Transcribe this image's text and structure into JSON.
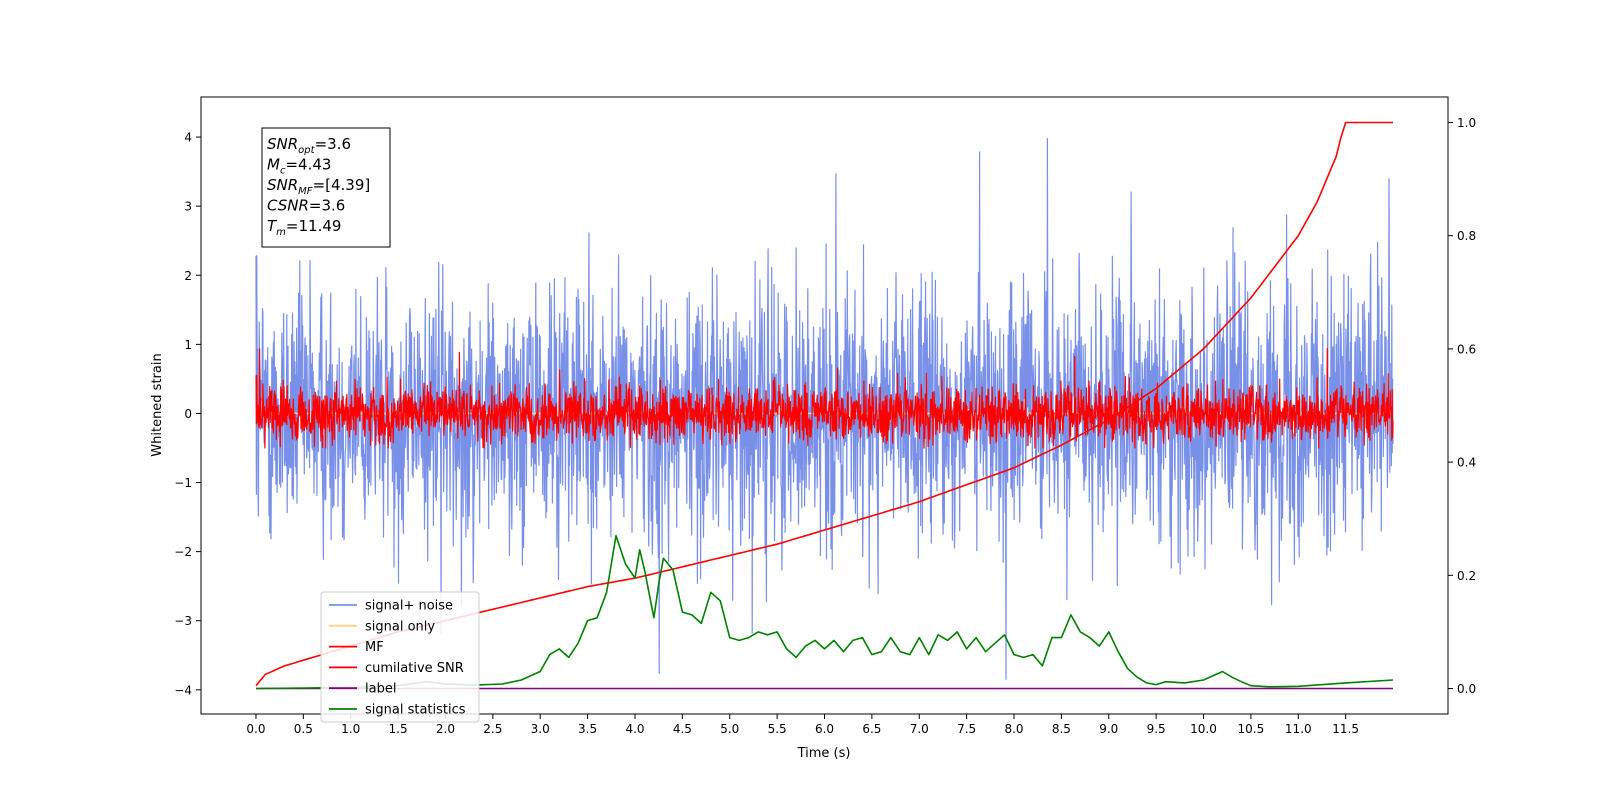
{
  "chart_data": {
    "type": "line",
    "xlabel": "Time (s)",
    "ylabel": "Whitened strain",
    "xlim": [
      -0.58,
      12.58
    ],
    "ylim": [
      -4.35,
      4.58
    ],
    "ylim_right": [
      -0.045,
      1.045
    ],
    "x_ticks": [
      "0.0",
      "0.5",
      "1.0",
      "1.5",
      "2.0",
      "2.5",
      "3.0",
      "3.5",
      "4.0",
      "4.5",
      "5.0",
      "5.5",
      "6.0",
      "6.5",
      "7.0",
      "7.5",
      "8.0",
      "8.5",
      "9.0",
      "9.5",
      "10.0",
      "10.5",
      "11.0",
      "11.5"
    ],
    "y_ticks_left": [
      "4",
      "3",
      "2",
      "1",
      "0",
      "−1",
      "−2",
      "−3",
      "−4"
    ],
    "y_ticks_right": [
      "1.0",
      "0.8",
      "0.6",
      "0.4",
      "0.2",
      "0.0"
    ],
    "grid": false,
    "legend_position": "lower-left",
    "annotation": {
      "lines": [
        {
          "sym": "SNR",
          "sub": "opt",
          "value": "=3.6"
        },
        {
          "sym": "M",
          "sub": "c",
          "value": "=4.43"
        },
        {
          "sym": "SNR",
          "sub": "MF",
          "value": "=[4.39]"
        },
        {
          "sym": "CSNR",
          "sub": "",
          "value": "=3.6"
        },
        {
          "sym": "T",
          "sub": "m",
          "value": "=11.49"
        }
      ]
    },
    "series": [
      {
        "name": "signal+ noise",
        "color": "#7990e8",
        "axis": "left",
        "kind": "noise",
        "x_range": [
          0,
          12
        ],
        "amplitude": 1.0,
        "peak_range": [
          -3.9,
          4.15
        ]
      },
      {
        "name": "signal only",
        "color": "#ffd27f",
        "axis": "left",
        "kind": "flat",
        "value": 0
      },
      {
        "name": "MF",
        "color": "#ff0000",
        "axis": "left",
        "kind": "noise",
        "x_range": [
          0,
          12
        ],
        "amplitude": 0.22,
        "peak_range": [
          -0.5,
          1.0
        ]
      },
      {
        "name": "cumilative SNR",
        "color": "#ff0000",
        "axis": "right",
        "x": [
          0.0,
          0.1,
          0.3,
          0.6,
          1.0,
          1.5,
          2.0,
          2.5,
          3.0,
          3.5,
          4.0,
          4.5,
          5.0,
          5.5,
          6.0,
          6.5,
          7.0,
          7.5,
          8.0,
          8.5,
          9.0,
          9.5,
          10.0,
          10.5,
          11.0,
          11.2,
          11.4,
          11.49,
          12.0
        ],
        "y": [
          0.005,
          0.025,
          0.04,
          0.055,
          0.075,
          0.1,
          0.12,
          0.14,
          0.16,
          0.18,
          0.195,
          0.215,
          0.235,
          0.255,
          0.28,
          0.305,
          0.33,
          0.36,
          0.39,
          0.43,
          0.475,
          0.53,
          0.6,
          0.69,
          0.8,
          0.86,
          0.94,
          1.0,
          1.0
        ]
      },
      {
        "name": "label",
        "color": "#800080",
        "axis": "right",
        "x": [
          0,
          12
        ],
        "y": [
          0.0,
          0.0
        ]
      },
      {
        "name": "signal statistics",
        "color": "#008000",
        "axis": "right",
        "x": [
          0.0,
          0.5,
          1.0,
          1.5,
          1.8,
          2.0,
          2.3,
          2.6,
          2.8,
          3.0,
          3.1,
          3.2,
          3.3,
          3.4,
          3.5,
          3.6,
          3.7,
          3.8,
          3.9,
          4.0,
          4.05,
          4.1,
          4.2,
          4.25,
          4.3,
          4.4,
          4.5,
          4.6,
          4.7,
          4.8,
          4.9,
          5.0,
          5.1,
          5.2,
          5.3,
          5.4,
          5.5,
          5.6,
          5.7,
          5.8,
          5.9,
          6.0,
          6.1,
          6.2,
          6.3,
          6.4,
          6.5,
          6.6,
          6.7,
          6.8,
          6.9,
          7.0,
          7.1,
          7.2,
          7.3,
          7.4,
          7.5,
          7.6,
          7.7,
          7.8,
          7.9,
          8.0,
          8.1,
          8.2,
          8.3,
          8.4,
          8.5,
          8.6,
          8.7,
          8.8,
          8.9,
          9.0,
          9.1,
          9.2,
          9.3,
          9.4,
          9.5,
          9.6,
          9.8,
          10.0,
          10.2,
          10.3,
          10.4,
          10.5,
          10.7,
          11.0,
          11.5,
          12.0
        ],
        "y": [
          0.0,
          0.001,
          0.002,
          0.005,
          0.012,
          0.008,
          0.006,
          0.008,
          0.015,
          0.03,
          0.06,
          0.07,
          0.055,
          0.08,
          0.12,
          0.125,
          0.17,
          0.27,
          0.22,
          0.195,
          0.245,
          0.21,
          0.125,
          0.185,
          0.23,
          0.21,
          0.135,
          0.13,
          0.115,
          0.17,
          0.155,
          0.09,
          0.085,
          0.09,
          0.1,
          0.095,
          0.1,
          0.07,
          0.055,
          0.075,
          0.085,
          0.07,
          0.085,
          0.065,
          0.085,
          0.09,
          0.06,
          0.065,
          0.09,
          0.065,
          0.06,
          0.09,
          0.06,
          0.095,
          0.085,
          0.1,
          0.07,
          0.09,
          0.065,
          0.08,
          0.095,
          0.06,
          0.055,
          0.06,
          0.04,
          0.09,
          0.09,
          0.13,
          0.1,
          0.09,
          0.075,
          0.1,
          0.065,
          0.035,
          0.02,
          0.01,
          0.007,
          0.012,
          0.01,
          0.015,
          0.03,
          0.02,
          0.012,
          0.005,
          0.003,
          0.004,
          0.01,
          0.015
        ]
      }
    ]
  }
}
